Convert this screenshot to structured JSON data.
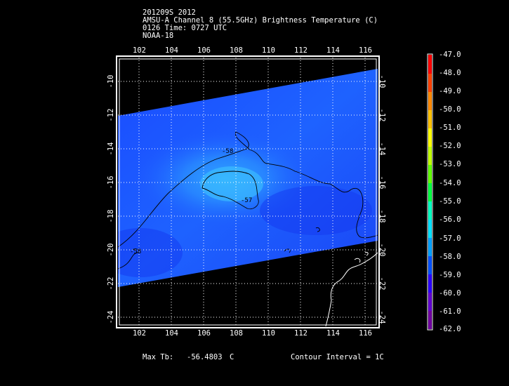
{
  "title": {
    "line1": "201209S 2012",
    "line2": "AMSU-A Channel 8 (55.5GHz) Brightness Temperature (C)",
    "line3": "0126 Time: 0727 UTC",
    "line4": "NOAA-18"
  },
  "map": {
    "lon_ticks": [
      "102",
      "104",
      "106",
      "108",
      "110",
      "112",
      "114",
      "116"
    ],
    "lon_values": [
      102,
      104,
      106,
      108,
      110,
      112,
      114,
      116
    ],
    "lat_ticks": [
      "-10",
      "-12",
      "-14",
      "-16",
      "-18",
      "-20",
      "-22",
      "-24"
    ],
    "lat_values": [
      -10,
      -12,
      -14,
      -16,
      -18,
      -20,
      -22,
      -24
    ],
    "lon_range": [
      100.7,
      116.6
    ],
    "lat_range": [
      -24.3,
      -8.5
    ],
    "contour_labels": [
      "-58",
      "-57",
      "-58"
    ],
    "grid": true
  },
  "colorbar": {
    "labels": [
      "-47.0",
      "-48.0",
      "-49.0",
      "-50.0",
      "-51.0",
      "-52.0",
      "-53.0",
      "-54.0",
      "-55.0",
      "-56.0",
      "-57.0",
      "-58.0",
      "-59.0",
      "-60.0",
      "-61.0",
      "-62.0"
    ],
    "colors": [
      "#ff0000",
      "#ff4000",
      "#ff8800",
      "#ffc000",
      "#ffff00",
      "#c0ff00",
      "#60ff00",
      "#00ff40",
      "#00ffc0",
      "#00e0ff",
      "#00a0ff",
      "#0050ff",
      "#2a00ff",
      "#6000d0",
      "#7000a0",
      "#ffffff"
    ]
  },
  "footer": {
    "max_label": "Max Tb:",
    "max_value": "-56.4803",
    "max_unit": "C",
    "contour_label": "Contour Interval = 1C"
  },
  "colors": {
    "swath_base": "#1e5aff",
    "swath_light": "#2a90ff",
    "swath_dark": "#1438f0"
  }
}
